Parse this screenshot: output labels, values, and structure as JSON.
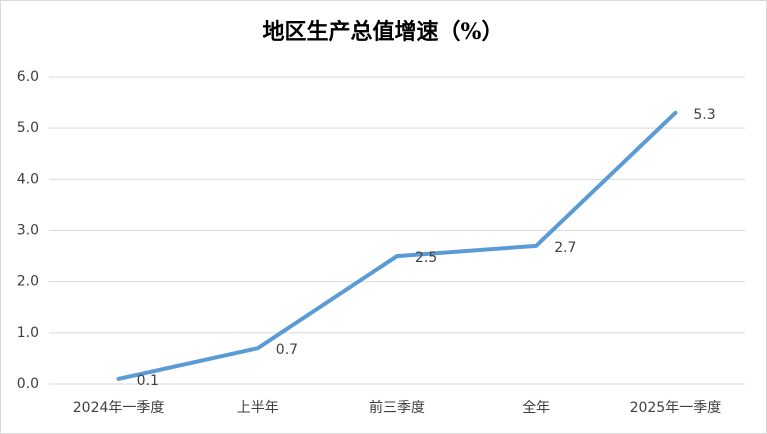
{
  "chart_data": {
    "type": "line",
    "title": "地区生产总值增速（%）",
    "categories": [
      "2024年一季度",
      "上半年",
      "前三季度",
      "全年",
      "2025年一季度"
    ],
    "values": [
      0.1,
      0.7,
      2.5,
      2.7,
      5.3
    ],
    "color": "#5b9bd5",
    "ylim": [
      0,
      6
    ],
    "yticks": [
      {
        "value": 0,
        "label": "0.0"
      },
      {
        "value": 1,
        "label": "1.0"
      },
      {
        "value": 2,
        "label": "2.0"
      },
      {
        "value": 3,
        "label": "3.0"
      },
      {
        "value": 4,
        "label": "4.0"
      },
      {
        "value": 5,
        "label": "5.0"
      },
      {
        "value": 6,
        "label": "6.0"
      }
    ],
    "grid": true
  }
}
